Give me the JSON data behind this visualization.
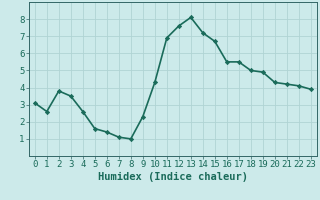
{
  "x": [
    0,
    1,
    2,
    3,
    4,
    5,
    6,
    7,
    8,
    9,
    10,
    11,
    12,
    13,
    14,
    15,
    16,
    17,
    18,
    19,
    20,
    21,
    22,
    23
  ],
  "y": [
    3.1,
    2.6,
    3.8,
    3.5,
    2.6,
    1.6,
    1.4,
    1.1,
    1.0,
    2.3,
    4.3,
    6.9,
    7.6,
    8.1,
    7.2,
    6.7,
    5.5,
    5.5,
    5.0,
    4.9,
    4.3,
    4.2,
    4.1,
    3.9
  ],
  "line_color": "#1a6b5a",
  "marker": "D",
  "markersize": 2.2,
  "bg_color": "#cceaea",
  "grid_color": "#b0d4d4",
  "xlabel": "Humidex (Indice chaleur)",
  "ylim": [
    0,
    9
  ],
  "xlim": [
    -0.5,
    23.5
  ],
  "yticks": [
    1,
    2,
    3,
    4,
    5,
    6,
    7,
    8
  ],
  "xticks": [
    0,
    1,
    2,
    3,
    4,
    5,
    6,
    7,
    8,
    9,
    10,
    11,
    12,
    13,
    14,
    15,
    16,
    17,
    18,
    19,
    20,
    21,
    22,
    23
  ],
  "tick_fontsize": 6.5,
  "xlabel_fontsize": 7.5,
  "linewidth": 1.2,
  "spine_color": "#336666"
}
